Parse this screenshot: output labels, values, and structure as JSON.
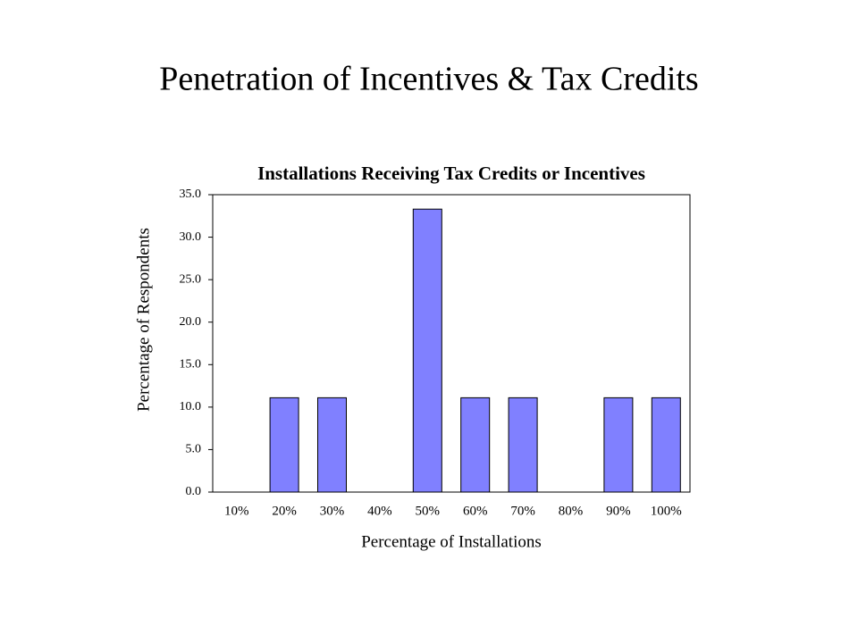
{
  "slide": {
    "title": "Penetration of Incentives & Tax Credits"
  },
  "chart_data": {
    "type": "bar",
    "title": "Installations Receiving Tax Credits or Incentives",
    "x_label": "Percentage of Installations",
    "y_label": "Percentage of Respondents",
    "categories": [
      "10%",
      "20%",
      "30%",
      "40%",
      "50%",
      "60%",
      "70%",
      "80%",
      "90%",
      "100%"
    ],
    "values": [
      0,
      11.1,
      11.1,
      0,
      33.3,
      11.1,
      11.1,
      0,
      11.1,
      11.1
    ],
    "color": "#8080ff",
    "ylim": [
      0,
      35
    ],
    "yticks": [
      {
        "value": 0,
        "label": "0.0"
      },
      {
        "value": 5,
        "label": "5.0"
      },
      {
        "value": 10,
        "label": "10.0"
      },
      {
        "value": 15,
        "label": "15.0"
      },
      {
        "value": 20,
        "label": "20.0"
      },
      {
        "value": 25,
        "label": "25.0"
      },
      {
        "value": 30,
        "label": "30.0"
      },
      {
        "value": 35,
        "label": "35.0"
      }
    ],
    "grid": false
  }
}
